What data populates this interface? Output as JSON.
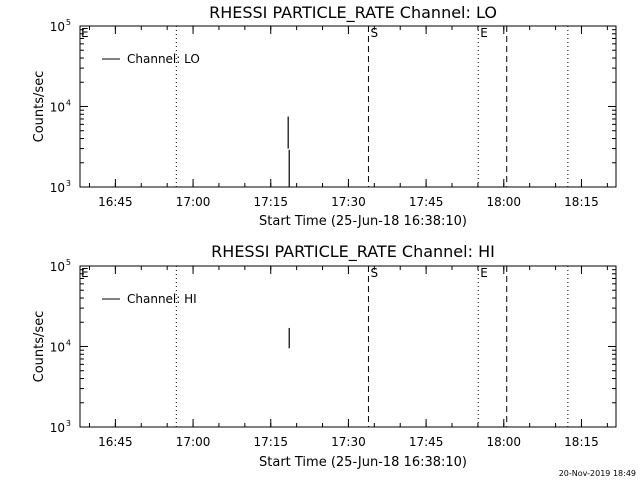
{
  "chart_data": [
    {
      "type": "line",
      "title": "RHESSI PARTICLE_RATE Channel: LO",
      "xlabel": "Start Time (25-Jun-18 16:38:10)",
      "ylabel": "Counts/sec",
      "x_tick_labels": [
        "16:45",
        "17:00",
        "17:15",
        "17:30",
        "17:45",
        "18:00",
        "18:15"
      ],
      "x_tick_minutes": [
        6.833,
        21.833,
        36.833,
        51.833,
        66.833,
        81.833,
        96.833
      ],
      "xlim_minutes": [
        0,
        103.5
      ],
      "y_scale": "log",
      "y_ticks": [
        {
          "label": "10",
          "exp": "3",
          "value": 1000
        },
        {
          "label": "10",
          "exp": "4",
          "value": 10000
        },
        {
          "label": "10",
          "exp": "5",
          "value": 100000
        }
      ],
      "ylim": [
        1000,
        100000
      ],
      "legend": {
        "entry": "Channel: LO",
        "placement": "top-left"
      },
      "series": [
        {
          "name": "Channel: LO",
          "segments": [
            {
              "x": 40.2,
              "y": [
                3000,
                7500
              ]
            },
            {
              "x": 40.4,
              "y": [
                1000,
                2900
              ]
            }
          ]
        }
      ],
      "markers": [
        {
          "type": "dotted",
          "x_minutes": 18.6,
          "label": ""
        },
        {
          "type": "dashed",
          "x_minutes": 55.7,
          "label": "S"
        },
        {
          "type": "dotted",
          "x_minutes": 76.9,
          "label": "E"
        },
        {
          "type": "dashed",
          "x_minutes": 82.4,
          "label": ""
        },
        {
          "type": "dotted",
          "x_minutes": 94.2,
          "label": ""
        }
      ],
      "edge_label": "E"
    },
    {
      "type": "line",
      "title": "RHESSI PARTICLE_RATE Channel: HI",
      "xlabel": "Start Time (25-Jun-18 16:38:10)",
      "ylabel": "Counts/sec",
      "x_tick_labels": [
        "16:45",
        "17:00",
        "17:15",
        "17:30",
        "17:45",
        "18:00",
        "18:15"
      ],
      "x_tick_minutes": [
        6.833,
        21.833,
        36.833,
        51.833,
        66.833,
        81.833,
        96.833
      ],
      "xlim_minutes": [
        0,
        103.5
      ],
      "y_scale": "log",
      "y_ticks": [
        {
          "label": "10",
          "exp": "3",
          "value": 1000
        },
        {
          "label": "10",
          "exp": "4",
          "value": 10000
        },
        {
          "label": "10",
          "exp": "5",
          "value": 100000
        }
      ],
      "ylim": [
        1000,
        100000
      ],
      "legend": {
        "entry": "Channel: HI",
        "placement": "top-left"
      },
      "series": [
        {
          "name": "Channel: HI",
          "segments": [
            {
              "x": 40.4,
              "y": [
                9500,
                17000
              ]
            }
          ]
        }
      ],
      "markers": [
        {
          "type": "dotted",
          "x_minutes": 18.6,
          "label": ""
        },
        {
          "type": "dashed",
          "x_minutes": 55.7,
          "label": "S"
        },
        {
          "type": "dotted",
          "x_minutes": 76.9,
          "label": "E"
        },
        {
          "type": "dashed",
          "x_minutes": 82.4,
          "label": ""
        },
        {
          "type": "dotted",
          "x_minutes": 94.2,
          "label": ""
        }
      ],
      "edge_label": "E"
    }
  ],
  "timestamp": "20-Nov-2019 18:49"
}
